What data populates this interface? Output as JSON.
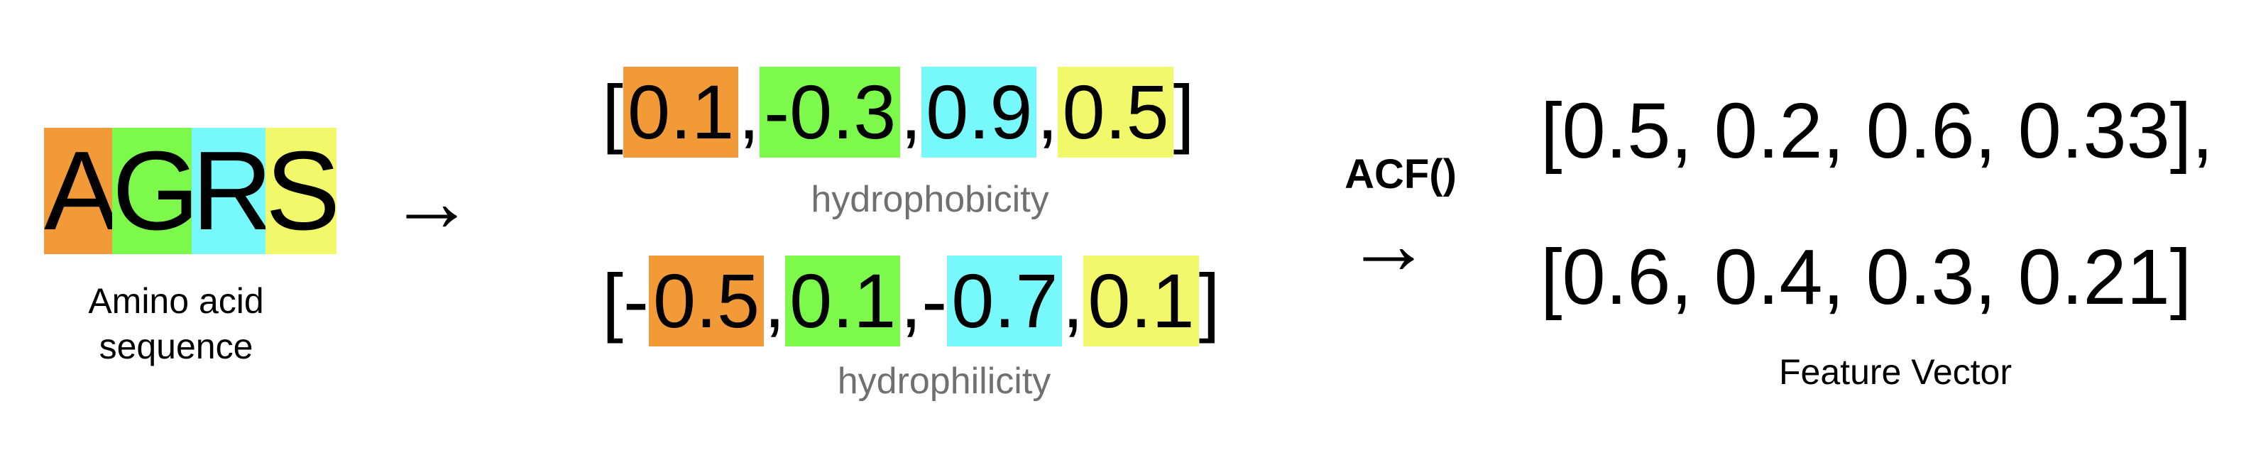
{
  "sequence": {
    "letters": [
      {
        "char": "A",
        "color": "#F29A38"
      },
      {
        "char": "G",
        "color": "#7CF94A"
      },
      {
        "char": "R",
        "color": "#77F8FB"
      },
      {
        "char": "S",
        "color": "#F1F96A"
      }
    ],
    "caption_line1": "Amino acid",
    "caption_line2": "sequence"
  },
  "arrow_symbol": "→",
  "hydrophobicity": {
    "open": "[",
    "values": [
      "0.1",
      "-0.3",
      "0.9",
      "0.5"
    ],
    "separators": [
      ", ",
      ", ",
      ", "
    ],
    "close": "]",
    "label": "hydrophobicity"
  },
  "hydrophilicity": {
    "open": "[-",
    "values": [
      "0.5",
      "0.1",
      " 0.7",
      "0.1"
    ],
    "separators": [
      ", ",
      ",- ",
      ", "
    ],
    "close": "]",
    "label": "hydrophilicity"
  },
  "function_label": "ACF()",
  "feature_vector": {
    "line1": "[0.5, 0.2, 0.6, 0.33],",
    "line2": "[0.6, 0.4, 0.3, 0.21]",
    "label": "Feature Vector"
  },
  "colors": {
    "orange": "#F29A38",
    "green": "#7CF94A",
    "cyan": "#77F8FB",
    "yellow": "#F1F96A",
    "label_gray": "#707070"
  }
}
